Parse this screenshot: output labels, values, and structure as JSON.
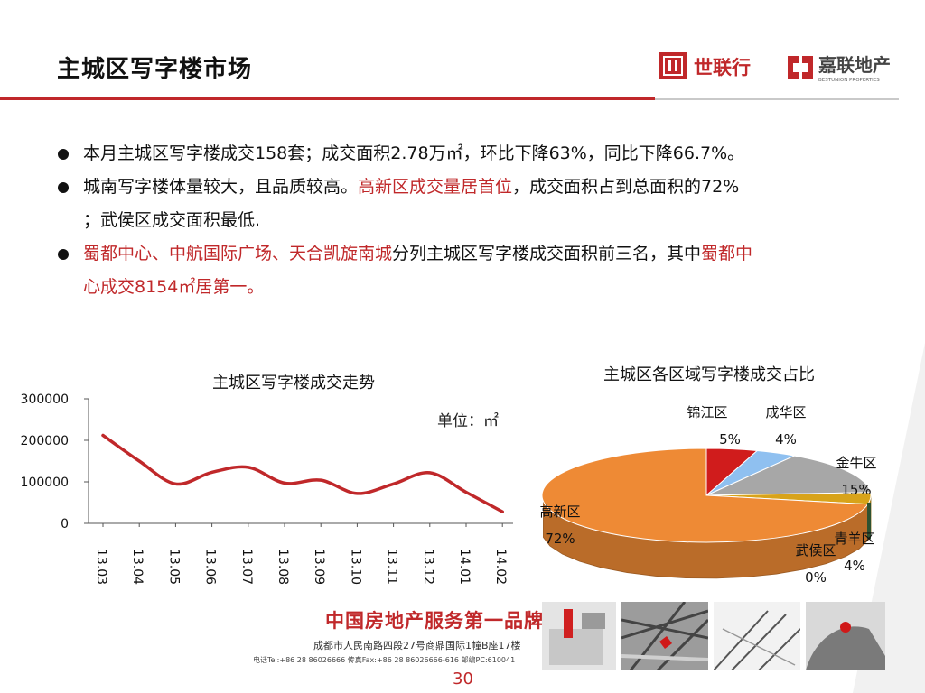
{
  "slide": {
    "title": "主城区写字楼市场",
    "page_number": "30"
  },
  "logos": {
    "shilianhang": "世联行",
    "jialian_main": "嘉联地产",
    "jialian_sub": "BESTUNION PROPERTIES"
  },
  "bullets": {
    "b1": "本月主城区写字楼成交158套；成交面积2.78万㎡，环比下降63%，同比下降66.7%。",
    "b2_a": "城南写字楼体量较大，且品质较高。",
    "b2_b": "高新区成交量居首位",
    "b2_c": "，成交面积占到总面积的72%",
    "b2_d": "；武侯区成交面积最低.",
    "b3_a": "蜀都中心、中航国际广场、天合凯旋南城",
    "b3_b": "分列主城区写字楼成交面积前三名，其中",
    "b3_c": "蜀都中",
    "b3_d": "心成交8154㎡居第一。"
  },
  "footer": {
    "slogan": "中国房地产服务第一品牌",
    "address": "成都市人民南路四段27号商鼎国际1幢B座17楼",
    "contact": "电话Tel:+86 28 86026666  传真Fax:+86 28 86026666-616  邮编PC:610041"
  },
  "colors": {
    "accent": "#c0282a",
    "line": "#c0282a",
    "pie_gaoxin": "#ee8a35",
    "pie_jinjiang": "#d01c1c",
    "pie_chenghua": "#8fc0f0",
    "pie_jinniu": "#a7a7a7",
    "pie_qingyang": "#d8a31a",
    "pie_wuhou": "#2e5231"
  },
  "chart_data": [
    {
      "type": "line",
      "title": "主城区写字楼成交走势",
      "unit": "单位：㎡",
      "categories": [
        "13.03",
        "13.04",
        "13.05",
        "13.06",
        "13.07",
        "13.08",
        "13.09",
        "13.10",
        "13.11",
        "13.12",
        "14.01",
        "14.02"
      ],
      "yticks": [
        "300000",
        "200000",
        "100000",
        "0"
      ],
      "ylim": [
        0,
        300000
      ],
      "series": [
        {
          "values": [
            212000,
            150000,
            95000,
            123000,
            135000,
            97000,
            104000,
            72000,
            95000,
            122000,
            75000,
            28000
          ]
        }
      ],
      "grid": false
    },
    {
      "type": "pie",
      "title": "主城区各区域写字楼成交占比",
      "slices": [
        {
          "label": "高新区",
          "value": 72,
          "pct": "72%"
        },
        {
          "label": "锦江区",
          "value": 5,
          "pct": "5%"
        },
        {
          "label": "成华区",
          "value": 4,
          "pct": "4%"
        },
        {
          "label": "金牛区",
          "value": 15,
          "pct": "15%"
        },
        {
          "label": "青羊区",
          "value": 4,
          "pct": "4%"
        },
        {
          "label": "武侯区",
          "value": 0,
          "pct": "0%"
        }
      ]
    }
  ]
}
